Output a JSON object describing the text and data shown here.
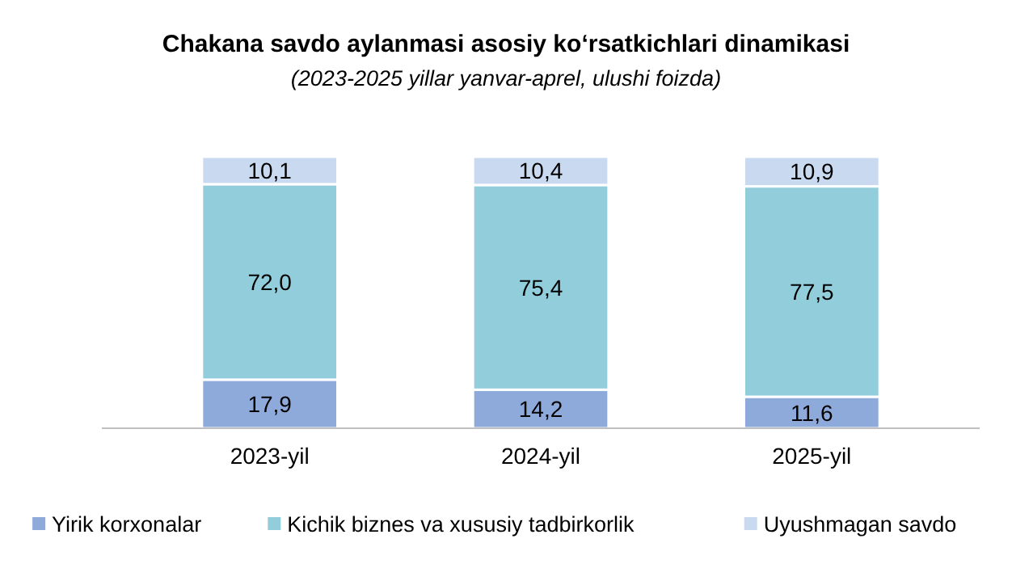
{
  "chart_data": {
    "type": "bar",
    "title": "Chakana savdo aylanmasi asosiy ko‘rsatkichlari dinamikasi",
    "subtitle": "(2023-2025 yillar yanvar-aprel, ulushi foizda)",
    "categories": [
      "2023-yil",
      "2024-yil",
      "2025-yil"
    ],
    "stacked": true,
    "legend": "bottom",
    "series": [
      {
        "name": "Yirik korxonalar",
        "color": "#8eaadb",
        "values": [
          17.9,
          14.2,
          11.6
        ],
        "value_labels": [
          "17,9",
          "14,2",
          "11,6"
        ]
      },
      {
        "name": "Kichik biznes va xususiy tadbirkorlik",
        "color": "#92cddc",
        "values": [
          72.0,
          75.4,
          77.5
        ],
        "value_labels": [
          "72,0",
          "75,4",
          "77,5"
        ]
      },
      {
        "name": "Uyushmagan savdo",
        "color": "#c9d9f0",
        "values": [
          10.1,
          10.4,
          10.9
        ],
        "value_labels": [
          "10,1",
          "10,4",
          "10,9"
        ]
      }
    ]
  }
}
